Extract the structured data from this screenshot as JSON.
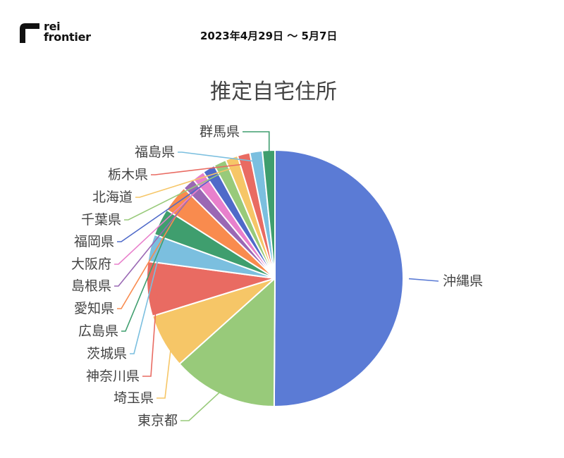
{
  "header": {
    "logo_line1": "rei",
    "logo_line2": "frontier",
    "date_range": "2023年4月29日 〜 5月7日"
  },
  "chart_data": {
    "type": "pie",
    "title": "推定自宅住所",
    "slices": [
      {
        "label": "沖縄県",
        "value": 51.0,
        "color": "#5B7BD5"
      },
      {
        "label": "東京都",
        "value": 13.5,
        "color": "#98CA7A"
      },
      {
        "label": "埼玉県",
        "value": 7.0,
        "color": "#F6C667"
      },
      {
        "label": "神奈川県",
        "value": 7.0,
        "color": "#E96B62"
      },
      {
        "label": "茨城県",
        "value": 3.5,
        "color": "#7BBFDF"
      },
      {
        "label": "広島県",
        "value": 3.5,
        "color": "#3F9E6E"
      },
      {
        "label": "愛知県",
        "value": 3.5,
        "color": "#F98B4E"
      },
      {
        "label": "島根県",
        "value": 1.6,
        "color": "#9A68B4"
      },
      {
        "label": "大阪府",
        "value": 1.6,
        "color": "#E880CC"
      },
      {
        "label": "福岡県",
        "value": 1.6,
        "color": "#4F6AC9"
      },
      {
        "label": "千葉県",
        "value": 1.6,
        "color": "#98CA7A"
      },
      {
        "label": "北海道",
        "value": 1.6,
        "color": "#F6C667"
      },
      {
        "label": "栃木県",
        "value": 1.6,
        "color": "#E96B62"
      },
      {
        "label": "福島県",
        "value": 1.6,
        "color": "#7BBFDF"
      },
      {
        "label": "群馬県",
        "value": 1.6,
        "color": "#3F9E6E"
      }
    ]
  }
}
